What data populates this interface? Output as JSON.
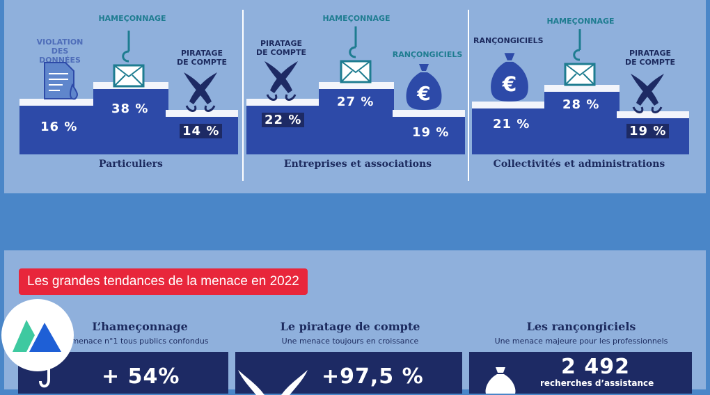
{
  "segments": [
    {
      "name": "Particuliers",
      "left": {
        "label": "Violation des données",
        "pct": "16 %"
      },
      "center": {
        "label": "Hameçonnage",
        "pct": "38 %"
      },
      "right": {
        "label": "Piratage de compte",
        "pct": "14 %"
      }
    },
    {
      "name": "Entreprises et associations",
      "left": {
        "label": "Piratage de compte",
        "pct": "22 %"
      },
      "center": {
        "label": "Hameçonnage",
        "pct": "27 %"
      },
      "right": {
        "label": "Rançongiciels",
        "pct": "19 %"
      }
    },
    {
      "name": "Collectivités et administrations",
      "left": {
        "label": "Rançongiciels",
        "pct": "21 %"
      },
      "center": {
        "label": "Hameçonnage",
        "pct": "28 %"
      },
      "right": {
        "label": "Piratage de compte",
        "pct": "19 %"
      }
    }
  ],
  "banner": "Les grandes tendances de la menace en 2022",
  "trends": [
    {
      "title": "L’hameçonnage",
      "subtitle": "menace n°1 tous publics confondus",
      "value": "+ 54%",
      "caption": ""
    },
    {
      "title": "Le piratage de compte",
      "subtitle": "Une menace toujours en croissance",
      "value": "+97,5 %",
      "caption": ""
    },
    {
      "title": "Les rançongiciels",
      "subtitle": "Une menace majeure pour les professionnels",
      "value": "2 492",
      "caption": "recherches d’assistance"
    }
  ],
  "colors": {
    "background": "#4a86c8",
    "panel": "#8fb0dc",
    "podium": "#2d4aa8",
    "navy": "#1d2a64",
    "teal": "#1e7c90",
    "banner": "#e8263b"
  },
  "icons": [
    "document-leak-icon",
    "fishhook-envelope-icon",
    "crossed-swords-icon",
    "money-bag-euro-icon"
  ]
}
